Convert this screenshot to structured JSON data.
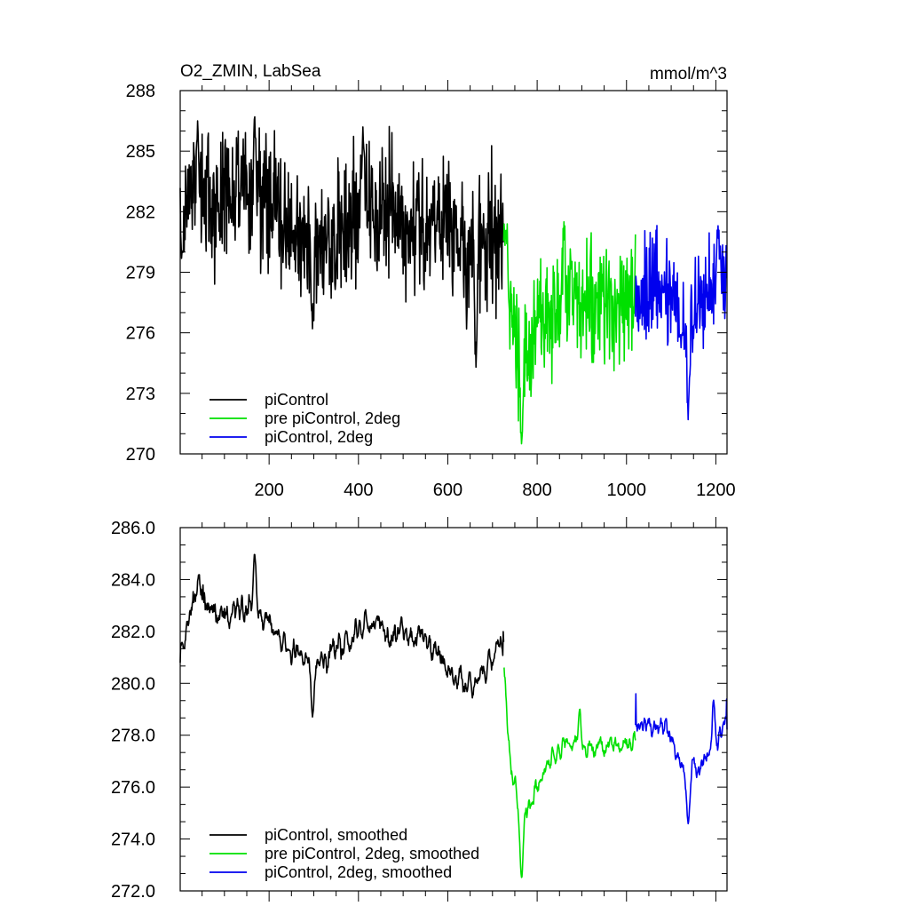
{
  "chart_data": [
    {
      "type": "line",
      "title": "O2_ZMIN, LabSea",
      "units": "mmol/m^3",
      "xlabel": "",
      "ylabel": "",
      "xlim": [
        1,
        1225
      ],
      "ylim": [
        270,
        288
      ],
      "xticks": [
        200,
        400,
        600,
        800,
        1000,
        1200
      ],
      "yticks": [
        270,
        273,
        276,
        279,
        282,
        285,
        288
      ],
      "ytick_labels": [
        "270",
        "273",
        "276",
        "279",
        "282",
        "285",
        "288"
      ],
      "legend_position": "bottom-left",
      "series": [
        {
          "name": "piControl",
          "color": "#000000",
          "x_start": 1,
          "x_end": 725,
          "mean": 281.6,
          "noise": 1.7,
          "waypoints": [
            [
              1,
              281.0
            ],
            [
              30,
              283.5
            ],
            [
              60,
              282.5
            ],
            [
              170,
              283.0
            ],
            [
              300,
              279.8
            ],
            [
              420,
              282.5
            ],
            [
              540,
              281.6
            ],
            [
              600,
              281.5
            ],
            [
              660,
              279.5
            ],
            [
              725,
              281.5
            ]
          ],
          "notable": [
            [
              5,
              280.0
            ],
            [
              40,
              286.5
            ],
            [
              168,
              286.7
            ],
            [
              297,
              276.2
            ],
            [
              410,
              286.2
            ],
            [
              663,
              274.3
            ]
          ]
        },
        {
          "name": "pre piControl, 2deg",
          "color": "#00e000",
          "x_start": 725,
          "x_end": 1020,
          "mean": 277.0,
          "noise": 1.5,
          "waypoints": [
            [
              725,
              281.0
            ],
            [
              740,
              278.0
            ],
            [
              765,
              274.5
            ],
            [
              800,
              276.0
            ],
            [
              860,
              277.8
            ],
            [
              900,
              277.5
            ],
            [
              960,
              277.5
            ],
            [
              1020,
              277.8
            ]
          ],
          "notable": [
            [
              730,
              281.0
            ],
            [
              765,
              270.5
            ],
            [
              860,
              281.5
            ]
          ]
        },
        {
          "name": "piControl, 2deg",
          "color": "#0000ee",
          "x_start": 1020,
          "x_end": 1225,
          "mean": 278.0,
          "noise": 1.3,
          "waypoints": [
            [
              1020,
              278.0
            ],
            [
              1080,
              278.5
            ],
            [
              1130,
              276.5
            ],
            [
              1180,
              278.0
            ],
            [
              1225,
              279.0
            ]
          ],
          "notable": [
            [
              1138,
              271.7
            ],
            [
              1205,
              281.3
            ]
          ]
        }
      ]
    },
    {
      "type": "line",
      "title": "",
      "xlabel": "",
      "ylabel": "",
      "xlim": [
        1,
        1225
      ],
      "ylim": [
        272,
        286
      ],
      "xticks": [
        200,
        400,
        600,
        800,
        1000,
        1200
      ],
      "yticks": [
        272,
        274,
        276,
        278,
        280,
        282,
        284,
        286
      ],
      "ytick_labels": [
        "272.0",
        "274.0",
        "276.0",
        "278.0",
        "280.0",
        "282.0",
        "284.0",
        "286.0"
      ],
      "legend_position": "bottom-left",
      "series": [
        {
          "name": "piControl, smoothed",
          "color": "#000000",
          "x_start": 1,
          "x_end": 725,
          "mean": 281.6,
          "noise": 1.1,
          "waypoints": [
            [
              1,
              281.2
            ],
            [
              40,
              284.0
            ],
            [
              80,
              282.5
            ],
            [
              168,
              283.0
            ],
            [
              230,
              281.5
            ],
            [
              300,
              280.5
            ],
            [
              420,
              282.3
            ],
            [
              540,
              281.8
            ],
            [
              580,
              281.0
            ],
            [
              640,
              279.8
            ],
            [
              725,
              281.5
            ]
          ],
          "notable": [
            [
              10,
              281.4
            ],
            [
              168,
              285.5
            ],
            [
              297,
              278.3
            ]
          ]
        },
        {
          "name": "pre piControl, 2deg, smoothed",
          "color": "#00e000",
          "x_start": 725,
          "x_end": 1020,
          "mean": 277.0,
          "noise": 0.9,
          "waypoints": [
            [
              725,
              280.5
            ],
            [
              740,
              277.0
            ],
            [
              765,
              274.5
            ],
            [
              800,
              276.2
            ],
            [
              860,
              277.8
            ],
            [
              900,
              277.5
            ],
            [
              960,
              277.5
            ],
            [
              1020,
              277.8
            ]
          ],
          "notable": [
            [
              725,
              280.6
            ],
            [
              765,
              272.0
            ],
            [
              895,
              279.4
            ]
          ]
        },
        {
          "name": "piControl, 2deg, smoothed",
          "color": "#0000ee",
          "x_start": 1020,
          "x_end": 1225,
          "mean": 278.0,
          "noise": 0.9,
          "waypoints": [
            [
              1020,
              278.3
            ],
            [
              1080,
              278.5
            ],
            [
              1130,
              276.5
            ],
            [
              1180,
              277.0
            ],
            [
              1225,
              278.5
            ]
          ],
          "notable": [
            [
              1138,
              274.1
            ],
            [
              1195,
              279.8
            ]
          ]
        }
      ]
    }
  ]
}
